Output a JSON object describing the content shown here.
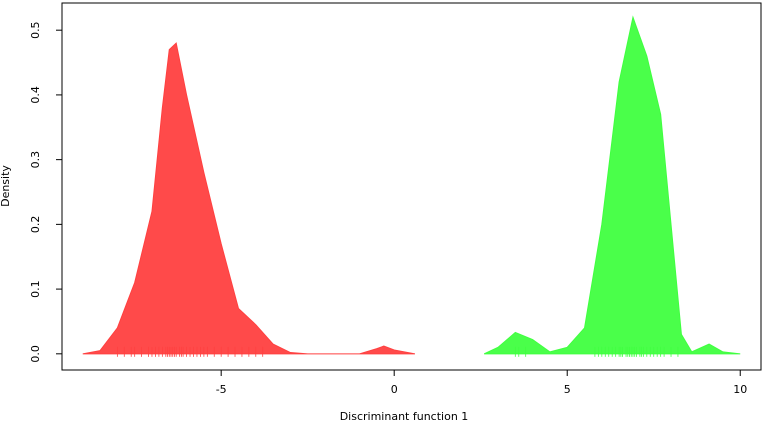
{
  "chart_data": {
    "type": "density",
    "xlabel": "Discriminant function 1",
    "ylabel": "Density",
    "xlim": [
      -9.6,
      10.6
    ],
    "ylim": [
      -0.025,
      0.542
    ],
    "xticks": [
      -5,
      0,
      5,
      10
    ],
    "yticks": [
      {
        "value": 0,
        "label": "0.0"
      },
      0.1,
      0.2,
      0.3,
      0.4,
      0.5
    ],
    "series": [
      {
        "color": "#ff4040",
        "x": [
          -9.0,
          -8.5,
          -8.0,
          -7.5,
          -7.0,
          -6.7,
          -6.5,
          -6.3,
          -6.0,
          -5.5,
          -5.0,
          -4.5,
          -4.0,
          -3.5,
          -3.0,
          -2.5,
          -1.0,
          -0.5,
          -0.3,
          0.0,
          0.6
        ],
        "values": [
          0,
          0.005,
          0.04,
          0.11,
          0.22,
          0.38,
          0.47,
          0.48,
          0.4,
          0.28,
          0.17,
          0.07,
          0.045,
          0.015,
          0.002,
          0,
          0,
          0.008,
          0.012,
          0.006,
          0
        ],
        "rug": [
          -8.0,
          -7.8,
          -7.6,
          -7.5,
          -7.3,
          -7.1,
          -7.0,
          -6.9,
          -6.8,
          -6.7,
          -6.6,
          -6.55,
          -6.5,
          -6.45,
          -6.4,
          -6.35,
          -6.3,
          -6.2,
          -6.15,
          -6.1,
          -6.0,
          -5.9,
          -5.8,
          -5.7,
          -5.6,
          -5.5,
          -5.4,
          -5.2,
          -5.0,
          -4.8,
          -4.6,
          -4.4,
          -4.2,
          -4.0,
          -3.8
        ]
      },
      {
        "color": "#40ff40",
        "x": [
          2.6,
          3.0,
          3.5,
          4.0,
          4.5,
          5.0,
          5.5,
          6.0,
          6.5,
          6.9,
          7.3,
          7.7,
          8.0,
          8.3,
          8.6,
          9.1,
          9.5,
          10.0
        ],
        "values": [
          0,
          0.01,
          0.033,
          0.022,
          0.003,
          0.01,
          0.04,
          0.2,
          0.42,
          0.52,
          0.46,
          0.37,
          0.2,
          0.03,
          0.003,
          0.015,
          0.003,
          0
        ],
        "rug": [
          3.5,
          3.6,
          3.8,
          5.8,
          5.9,
          6.0,
          6.1,
          6.2,
          6.3,
          6.4,
          6.5,
          6.55,
          6.6,
          6.7,
          6.75,
          6.8,
          6.85,
          6.9,
          6.95,
          7.0,
          7.1,
          7.15,
          7.2,
          7.3,
          7.4,
          7.5,
          7.6,
          7.7,
          7.8,
          8.0,
          8.2
        ]
      }
    ]
  }
}
